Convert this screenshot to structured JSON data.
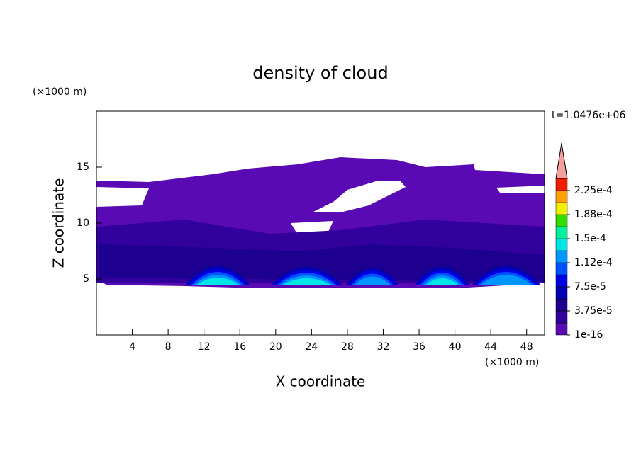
{
  "chart_data": {
    "type": "contour",
    "title": "density of cloud",
    "x_label": "X coordinate",
    "y_label": "Z coordinate",
    "x_unit": "(×1000 m)",
    "y_unit": "(×1000 m)",
    "time_label": "t=1.0476e+06",
    "xlim": [
      0,
      50
    ],
    "xticks": [
      4,
      8,
      12,
      16,
      20,
      24,
      28,
      32,
      36,
      40,
      44,
      48
    ],
    "ylim": [
      0,
      20
    ],
    "yticks": [
      5,
      10,
      15
    ],
    "colorbar": {
      "levels": [
        {
          "value": 1e-16,
          "label": "1e-16"
        },
        {
          "value": 3.75e-05,
          "label": "3.75e-5"
        },
        {
          "value": 7.5e-05,
          "label": "7.5e-5"
        },
        {
          "value": 0.000112,
          "label": "1.12e-4"
        },
        {
          "value": 0.00015,
          "label": "1.5e-4"
        },
        {
          "value": 0.000188,
          "label": "1.88e-4"
        },
        {
          "value": 0.000225,
          "label": "2.25e-4"
        }
      ],
      "colors": [
        "#5a0ab4",
        "#32009c",
        "#1e0090",
        "#0000b4",
        "#0000e6",
        "#0050ff",
        "#0096ff",
        "#00e6e6",
        "#00f0a0",
        "#32dc00",
        "#f0f000",
        "#ffa000",
        "#f01e00"
      ],
      "extend_color": "#f4a0a0"
    }
  }
}
